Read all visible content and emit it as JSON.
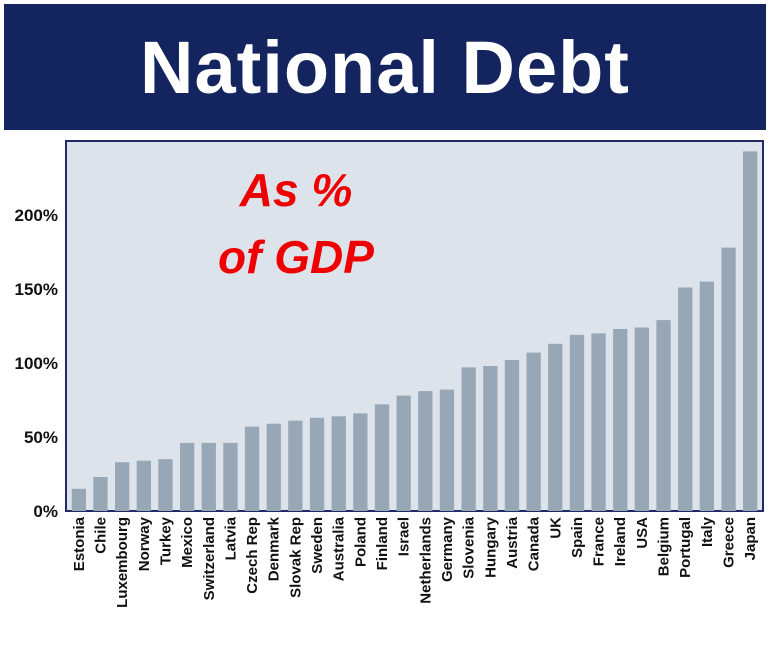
{
  "banner": {
    "title": "National Debt"
  },
  "annotation": {
    "line1": "As %",
    "line2": "of GDP",
    "color": "#ee0000"
  },
  "colors": {
    "banner_bg": "#14245f",
    "plot_bg": "#dde3ea",
    "bar": "#97a7b5",
    "axis": "#1f2a66"
  },
  "chart_data": {
    "type": "bar",
    "title": "National Debt",
    "xlabel": "",
    "ylabel": "",
    "ylim": [
      0,
      250
    ],
    "yticks": [
      0,
      50,
      100,
      150,
      200
    ],
    "ytick_labels": [
      "0%",
      "50%",
      "100%",
      "150%",
      "200%"
    ],
    "grid": false,
    "categories": [
      "Estonia",
      "Chile",
      "Luxembourg",
      "Norway",
      "Turkey",
      "Mexico",
      "Switzerland",
      "Latvia",
      "Czech Rep",
      "Denmark",
      "Slovak Rep",
      "Sweden",
      "Australia",
      "Poland",
      "Finland",
      "Israel",
      "Netherlands",
      "Germany",
      "Slovenia",
      "Hungary",
      "Austria",
      "Canada",
      "UK",
      "Spain",
      "France",
      "Ireland",
      "USA",
      "Belgium",
      "Portugal",
      "Italy",
      "Greece",
      "Japan"
    ],
    "values": [
      15,
      23,
      33,
      34,
      35,
      46,
      46,
      46,
      57,
      59,
      61,
      63,
      64,
      66,
      72,
      78,
      81,
      82,
      97,
      98,
      102,
      107,
      113,
      119,
      120,
      123,
      124,
      129,
      151,
      155,
      178,
      243
    ]
  }
}
